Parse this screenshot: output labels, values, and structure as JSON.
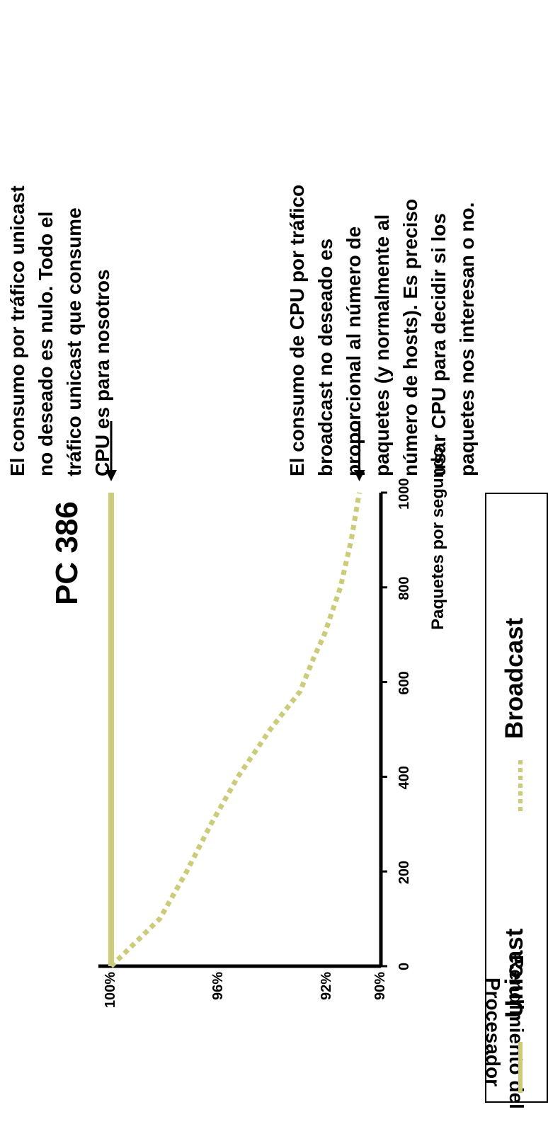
{
  "chart_data": {
    "type": "line",
    "title": "PC 386",
    "ylabel_lines": [
      "Rendimiento del",
      "Procesador"
    ],
    "xlabel": "Paquetes por segundo",
    "x_ticks": [
      "0",
      "200",
      "400",
      "600",
      "800",
      "1000"
    ],
    "y_ticks": [
      "100%",
      "96%",
      "92%",
      "90%"
    ],
    "xlim": [
      0,
      1000
    ],
    "ylim": [
      90,
      100
    ],
    "series": [
      {
        "name": "Unicast",
        "style": "solid",
        "color": "#cccc77",
        "x": [
          0,
          1000
        ],
        "y": [
          100,
          100
        ]
      },
      {
        "name": "Broadcast",
        "style": "dotted",
        "color": "#cccc77",
        "x": [
          0,
          100,
          200,
          300,
          400,
          500,
          580,
          650,
          700,
          800,
          900,
          1000
        ],
        "y": [
          100,
          98.2,
          97.2,
          96.3,
          95.3,
          94.1,
          93.0,
          92.5,
          92.1,
          91.5,
          91.1,
          90.8
        ]
      }
    ],
    "legend_position": "bottom"
  },
  "annotations": {
    "unicast_note": [
      "El consumo por tráfico unicast",
      "no deseado es nulo. Todo el",
      "tráfico unicast que consume",
      "CPU es para nosotros"
    ],
    "broadcast_note": [
      "El consumo de CPU por tráfico",
      "broadcast no deseado es",
      "proporcional al número de",
      "paquetes (y normalmente al",
      "número de hosts). Es preciso",
      "usar CPU para decidir si los",
      "paquetes nos interesan o no."
    ]
  }
}
